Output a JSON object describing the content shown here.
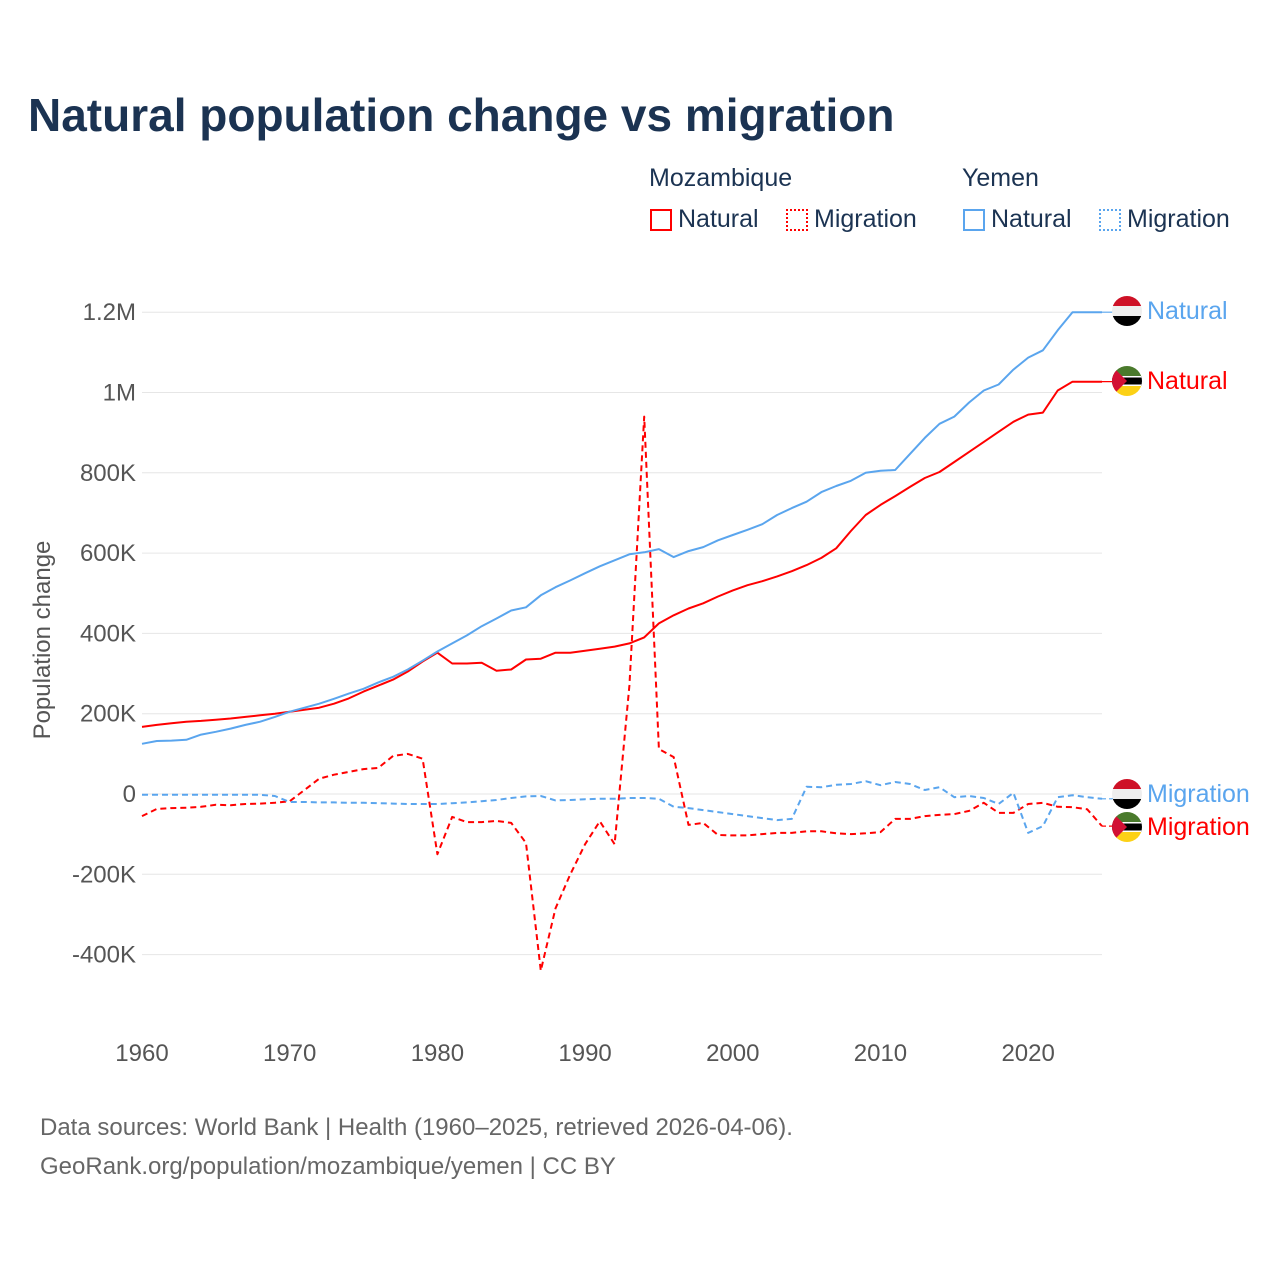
{
  "title": "Natural population change vs migration",
  "legend": {
    "groups": [
      {
        "name": "Mozambique",
        "items": [
          "Natural",
          "Migration"
        ]
      },
      {
        "name": "Yemen",
        "items": [
          "Natural",
          "Migration"
        ]
      }
    ]
  },
  "source": {
    "line1": "Data sources: World Bank | Health (1960–2025, retrieved 2026-04-06).",
    "line2": "GeoRank.org/population/mozambique/yemen | CC BY"
  },
  "chart_data": {
    "type": "line",
    "title": "Natural population change vs migration",
    "xlabel": "",
    "ylabel": "Population change",
    "xlim": [
      1960,
      2025
    ],
    "ylim": [
      -400000,
      1200000
    ],
    "x_ticks": [
      1960,
      1970,
      1980,
      1990,
      2000,
      2010,
      2020
    ],
    "x_tick_labels": [
      "1960",
      "1970",
      "1980",
      "1990",
      "2000",
      "2010",
      "2020"
    ],
    "y_ticks": [
      1200000,
      1000000,
      800000,
      600000,
      400000,
      200000,
      0,
      -200000,
      -400000
    ],
    "y_tick_labels": [
      "1.2M",
      "1M",
      "800K",
      "600K",
      "400K",
      "200K",
      "0",
      "-200K",
      "-400K"
    ],
    "grid": true,
    "x_start": 1960,
    "colors": {
      "mozambique": "#ff0000",
      "yemen": "#5aa5ee"
    },
    "series": [
      {
        "name": "Mozambique Natural",
        "country": "mozambique",
        "dash": false,
        "end_label": "Natural",
        "values_k": [
          167,
          172,
          176,
          180,
          182,
          185,
          188,
          192,
          196,
          200,
          205,
          210,
          215,
          225,
          238,
          255,
          270,
          285,
          305,
          330,
          352,
          325,
          325,
          327,
          307,
          310,
          335,
          337,
          352,
          352,
          357,
          362,
          367,
          375,
          390,
          425,
          445,
          462,
          475,
          492,
          507,
          520,
          530,
          542,
          555,
          570,
          588,
          612,
          655,
          695,
          720,
          742,
          765,
          787,
          802,
          827,
          852,
          877,
          902,
          927,
          945,
          950,
          1005,
          1027,
          1027,
          1027
        ]
      },
      {
        "name": "Mozambique Migration",
        "country": "mozambique",
        "dash": true,
        "end_label": "Migration",
        "values_k": [
          -55,
          -37,
          -35,
          -34,
          -32,
          -27,
          -28,
          -25,
          -24,
          -22,
          -18,
          10,
          38,
          48,
          55,
          62,
          65,
          95,
          100,
          88,
          -150,
          -57,
          -70,
          -70,
          -67,
          -72,
          -122,
          -440,
          -285,
          -200,
          -125,
          -68,
          -125,
          270,
          940,
          112,
          92,
          -77,
          -72,
          -102,
          -103,
          -103,
          -100,
          -97,
          -97,
          -93,
          -93,
          -98,
          -100,
          -98,
          -95,
          -62,
          -62,
          -55,
          -52,
          -50,
          -42,
          -22,
          -47,
          -47,
          -25,
          -22,
          -32,
          -33,
          -38,
          -80
        ]
      },
      {
        "name": "Yemen Natural",
        "country": "yemen",
        "dash": false,
        "end_label": "Natural",
        "values_k": [
          125,
          132,
          133,
          135,
          148,
          155,
          163,
          172,
          180,
          192,
          205,
          215,
          225,
          237,
          250,
          262,
          278,
          292,
          310,
          332,
          355,
          375,
          395,
          418,
          437,
          457,
          465,
          495,
          515,
          532,
          550,
          567,
          582,
          597,
          602,
          610,
          590,
          605,
          615,
          632,
          645,
          658,
          672,
          695,
          712,
          728,
          752,
          767,
          780,
          800,
          805,
          807,
          847,
          887,
          922,
          940,
          975,
          1005,
          1020,
          1057,
          1087,
          1105,
          1155,
          1200,
          1200,
          1200
        ]
      },
      {
        "name": "Yemen Migration",
        "country": "yemen",
        "dash": true,
        "end_label": "Migration",
        "values_k": [
          -2,
          -2,
          -2,
          -2,
          -2,
          -2,
          -2,
          -2,
          -2,
          -5,
          -20,
          -20,
          -21,
          -21,
          -22,
          -22,
          -23,
          -24,
          -25,
          -25,
          -25,
          -23,
          -21,
          -18,
          -15,
          -10,
          -6,
          -5,
          -16,
          -15,
          -13,
          -12,
          -12,
          -10,
          -10,
          -12,
          -32,
          -35,
          -40,
          -45,
          -50,
          -55,
          -60,
          -65,
          -62,
          18,
          17,
          23,
          25,
          32,
          22,
          30,
          25,
          10,
          17,
          -8,
          -5,
          -10,
          -25,
          3,
          -97,
          -80,
          -8,
          -3,
          -8,
          -12
        ]
      }
    ]
  }
}
